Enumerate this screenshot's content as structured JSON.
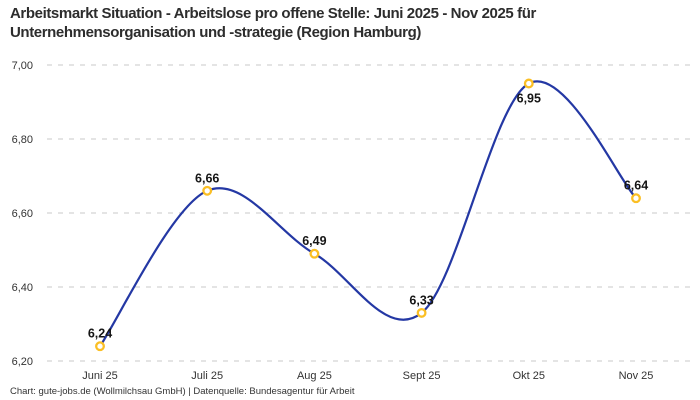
{
  "header": {
    "title_lines": [
      "Arbeitsmarkt Situation - Arbeitslose pro offene Stelle: Juni 2025 - Nov 2025 für",
      "Unternehmensorganisation und -strategie (Region Hamburg)"
    ]
  },
  "chart_data": {
    "type": "line",
    "title": "Arbeitsmarkt Situation - Arbeitslose pro offene Stelle: Juni 2025 - Nov 2025 für Unternehmensorganisation und -strategie (Region Hamburg)",
    "categories": [
      "Juni 25",
      "Juli 25",
      "Aug 25",
      "Sept 25",
      "Okt 25",
      "Nov 25"
    ],
    "values": [
      6.24,
      6.66,
      6.49,
      6.33,
      6.95,
      6.64
    ],
    "value_labels": [
      "6,24",
      "6,66",
      "6,49",
      "6,33",
      "6,95",
      "6,64"
    ],
    "y_ticks": [
      7.0,
      6.8,
      6.6,
      6.4,
      6.2
    ],
    "y_tick_labels": [
      "7,00",
      "6,80",
      "6,60",
      "6,40",
      "6,20"
    ],
    "ylim": [
      6.2,
      7.0
    ],
    "xlabel": "",
    "ylabel": "",
    "grid": "horizontal-dashed",
    "legend": "none",
    "line_color": "#2438a4",
    "marker_color": "#fbbf24",
    "marker_fill": "#ffffff"
  },
  "footer": {
    "credit": "Chart: gute-jobs.de (Wollmilchsau GmbH) | Datenquelle: Bundesagentur für Arbeit"
  }
}
